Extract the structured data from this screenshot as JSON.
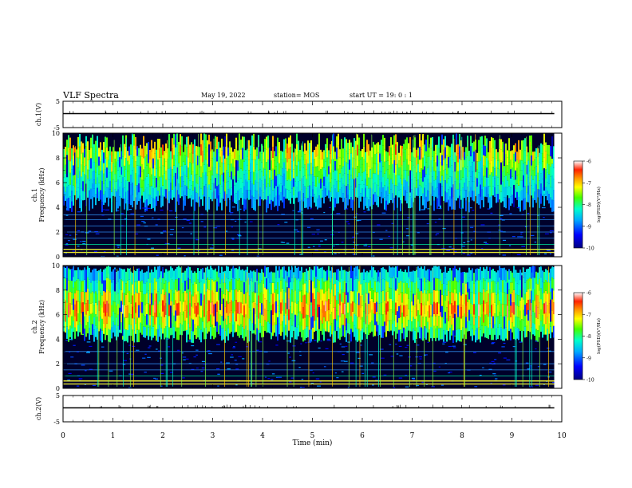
{
  "header": {
    "title": "VLF Spectra",
    "date": "May 19, 2022",
    "station": "station= MOS",
    "start_ut": "start UT =  19: 0 : 1"
  },
  "chart_data": [
    {
      "type": "line",
      "panel": "ch1-waveform",
      "ylabel": "ch.1(V)",
      "ylim": [
        -5,
        5
      ],
      "yticks": [
        "5",
        "-5"
      ],
      "series": [
        {
          "values": [
            0
          ]
        }
      ]
    },
    {
      "type": "heatmap",
      "panel": "ch1-spectrogram",
      "ylabel": "ch.1\nFrequency (kHz)",
      "ylim": [
        0,
        10
      ],
      "yticks": [
        "0",
        "2",
        "4",
        "6",
        "8",
        "10"
      ],
      "xlim": [
        0,
        10
      ],
      "colorbar": {
        "label": "log(PSD)(V²/Hz)",
        "range": [
          -10,
          -6
        ],
        "ticks": [
          "-6",
          "-7",
          "-8",
          "-9",
          "-10"
        ]
      },
      "x_end": 9.85,
      "noise_band_khz": [
        4,
        10
      ],
      "lines_khz": [
        0.35,
        0.6,
        1.0,
        1.5,
        2.0,
        2.5,
        3.0,
        3.4
      ]
    },
    {
      "type": "heatmap",
      "panel": "ch2-spectrogram",
      "ylabel": "ch.2\nFrequency (kHz)",
      "ylim": [
        0,
        10
      ],
      "yticks": [
        "0",
        "2",
        "4",
        "6",
        "8",
        "10"
      ],
      "xlim": [
        0,
        10
      ],
      "colorbar": {
        "label": "log(PSD)(V²/Hz)",
        "range": [
          -10,
          -6
        ],
        "ticks": [
          "-6",
          "-7",
          "-8",
          "-9",
          "-10"
        ]
      },
      "x_end": 9.85,
      "noise_band_khz": [
        4,
        10
      ],
      "peak_khz": 6.5,
      "lines_khz": [
        0.35,
        0.6,
        1.0,
        1.5,
        2.0,
        3.0
      ]
    },
    {
      "type": "line",
      "panel": "ch2-waveform",
      "ylabel": "ch.2(V)",
      "ylim": [
        -5,
        5
      ],
      "yticks": [
        "5",
        "-5"
      ],
      "series": [
        {
          "values": [
            0
          ]
        }
      ]
    }
  ],
  "xaxis": {
    "label": "Time (min)",
    "range": [
      0,
      10
    ],
    "ticks": [
      "0",
      "1",
      "2",
      "3",
      "4",
      "5",
      "6",
      "7",
      "8",
      "9",
      "10"
    ]
  }
}
